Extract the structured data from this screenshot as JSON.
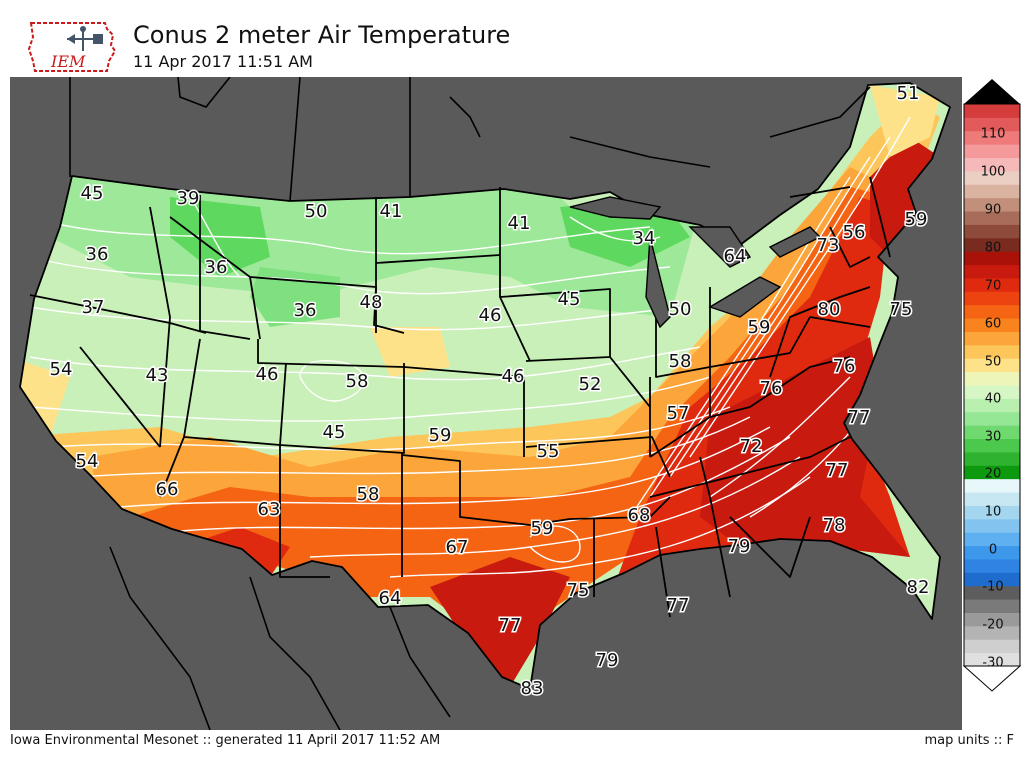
{
  "header": {
    "logo_text": "IEM",
    "title": "Conus 2 meter Air Temperature",
    "timestamp": "11 Apr 2017 11:51 AM"
  },
  "footer": {
    "credit": "Iowa Environmental Mesonet :: generated 11 April 2017 11:52 AM",
    "units": "map units :: F"
  },
  "map": {
    "region": "Conus",
    "land_outside_color": "#5a5a5a",
    "background_color": "#5a5a5a",
    "contour_color": "#ffffff",
    "boundary_color": "#000000",
    "temperature_labels": [
      {
        "value": "51"
      },
      {
        "value": "45"
      },
      {
        "value": "39"
      },
      {
        "value": "50"
      },
      {
        "value": "41"
      },
      {
        "value": "41"
      },
      {
        "value": "34"
      },
      {
        "value": "56"
      },
      {
        "value": "59"
      },
      {
        "value": "36"
      },
      {
        "value": "36"
      },
      {
        "value": "64"
      },
      {
        "value": "73"
      },
      {
        "value": "37"
      },
      {
        "value": "36"
      },
      {
        "value": "48"
      },
      {
        "value": "45"
      },
      {
        "value": "46"
      },
      {
        "value": "50"
      },
      {
        "value": "59"
      },
      {
        "value": "80"
      },
      {
        "value": "75"
      },
      {
        "value": "54"
      },
      {
        "value": "43"
      },
      {
        "value": "46"
      },
      {
        "value": "58"
      },
      {
        "value": "46"
      },
      {
        "value": "52"
      },
      {
        "value": "58"
      },
      {
        "value": "76"
      },
      {
        "value": "76"
      },
      {
        "value": "45"
      },
      {
        "value": "59"
      },
      {
        "value": "57"
      },
      {
        "value": "77"
      },
      {
        "value": "54"
      },
      {
        "value": "55"
      },
      {
        "value": "72"
      },
      {
        "value": "66"
      },
      {
        "value": "58"
      },
      {
        "value": "77"
      },
      {
        "value": "63"
      },
      {
        "value": "59"
      },
      {
        "value": "68"
      },
      {
        "value": "78"
      },
      {
        "value": "67"
      },
      {
        "value": "79"
      },
      {
        "value": "82"
      },
      {
        "value": "64"
      },
      {
        "value": "75"
      },
      {
        "value": "77"
      },
      {
        "value": "77"
      },
      {
        "value": "79"
      },
      {
        "value": "83"
      }
    ]
  },
  "colorbar": {
    "ticks": [
      "110",
      "100",
      "90",
      "80",
      "70",
      "60",
      "50",
      "40",
      "30",
      "20",
      "10",
      "0",
      "-10",
      "-20",
      "-30"
    ],
    "extend_top_color": "#000000",
    "extend_bottom_color": "#ffffff",
    "colors": [
      "#e0e0e0",
      "#cfcfcf",
      "#b4b4b4",
      "#9a9a9a",
      "#7a7a7a",
      "#5d5d5d",
      "#1f6ccf",
      "#2f83e3",
      "#3d98ec",
      "#5fb0f0",
      "#82c4ef",
      "#a4d6ef",
      "#c7e7f3",
      "#e8f7f9",
      "#0e9a0e",
      "#2fb22f",
      "#4cc84c",
      "#6fd86f",
      "#95e695",
      "#b9f0b0",
      "#d6f6c6",
      "#eef5b8",
      "#fde28a",
      "#fdc65a",
      "#fba53a",
      "#f9841e",
      "#f46412",
      "#ec4311",
      "#e02a10",
      "#c81a0e",
      "#a81208",
      "#7a2b1f",
      "#8e4a3a",
      "#a86c5a",
      "#c28f7b",
      "#dbb3a1",
      "#eccfc3",
      "#f5b9b9",
      "#f59a9a",
      "#ee7a7a",
      "#e35a5a",
      "#d53d3d"
    ]
  }
}
